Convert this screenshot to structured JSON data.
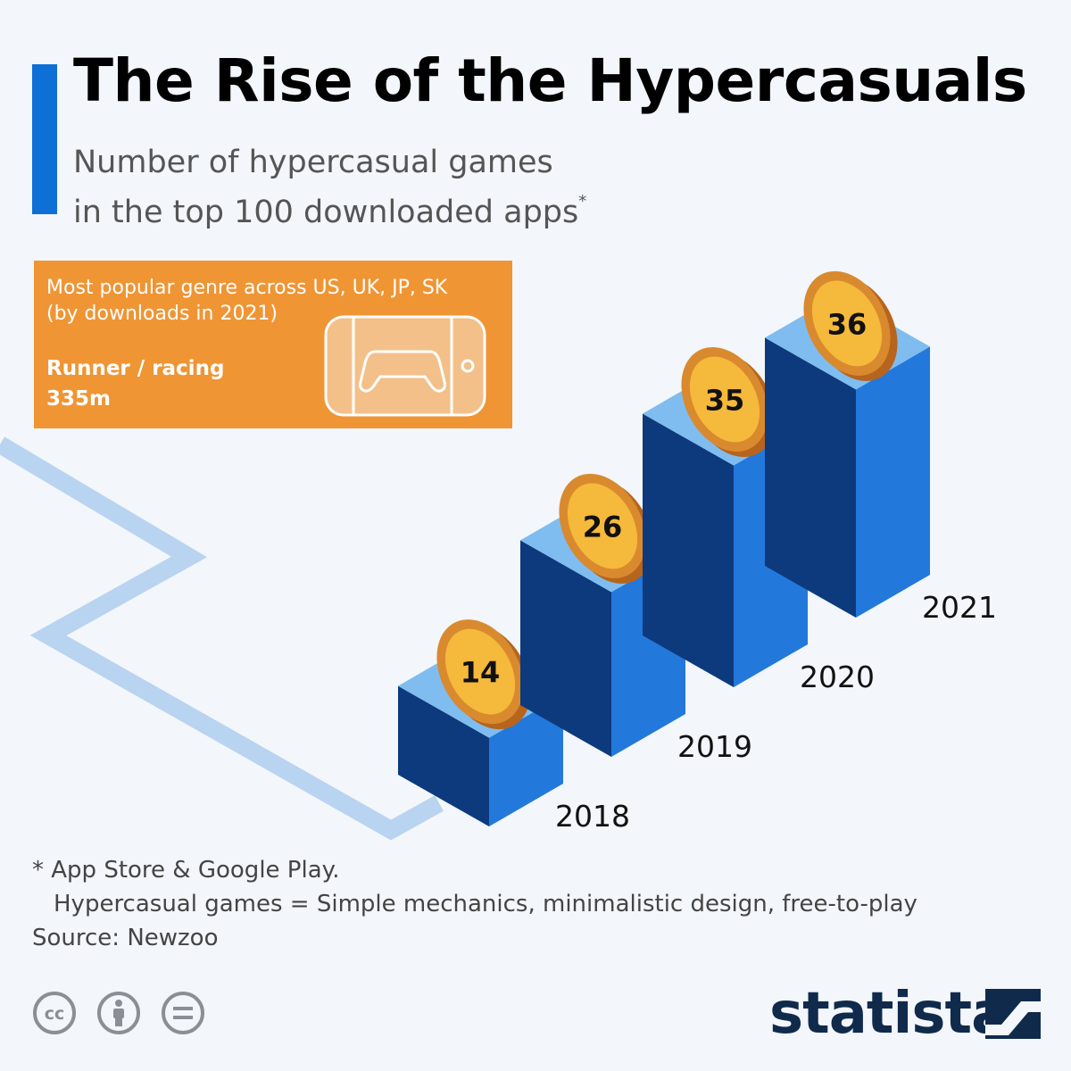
{
  "header": {
    "title": "The Rise of the Hypercasuals",
    "subtitle_line1": "Number of hypercasual games",
    "subtitle_line2": "in the top 100 downloaded apps",
    "subtitle_note": "*"
  },
  "callout": {
    "line1": "Most popular genre across US, UK, JP, SK",
    "line2": "(by downloads in 2021)",
    "genre": "Runner / racing",
    "downloads": "335m",
    "icon": "phone-gamepad-icon"
  },
  "footer": {
    "note_line1": "* App Store & Google Play.",
    "note_line2": "Hypercasual games = Simple mechanics, minimalistic design, free-to-play",
    "source": "Source: Newzoo",
    "brand": "statista",
    "license_icons": [
      "cc-icon",
      "attribution-icon",
      "no-derivatives-icon"
    ]
  },
  "colors": {
    "accent": "#0e6fd7",
    "callout": "#ef9534",
    "bar_top": "#7fbcef",
    "bar_left": "#0d3a7d",
    "bar_right": "#2378db",
    "coin": "#f5b93b",
    "coin_edge": "#b7641c",
    "path": "#b8d4f1",
    "brand": "#102a4c"
  },
  "chart_data": {
    "type": "bar",
    "title": "The Rise of the Hypercasuals",
    "categories": [
      "2018",
      "2019",
      "2020",
      "2021"
    ],
    "values": [
      14,
      26,
      35,
      36
    ],
    "series": [
      {
        "values": [
          14,
          26,
          35,
          36
        ]
      }
    ],
    "grid": false,
    "legend": false
  }
}
